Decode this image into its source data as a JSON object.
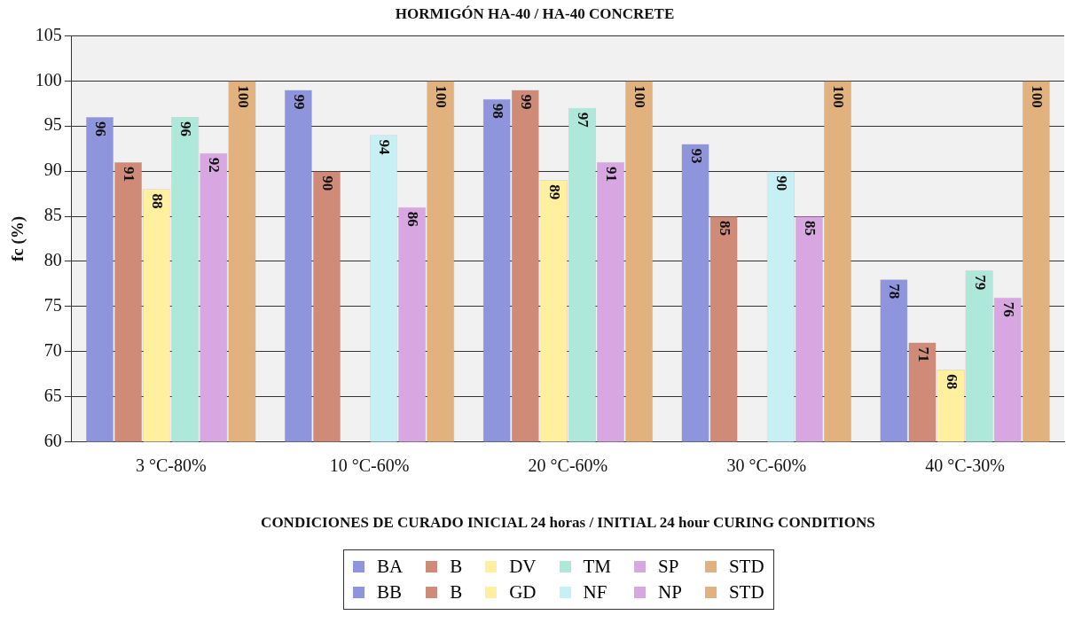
{
  "chart_data": {
    "type": "bar",
    "title": "HORMIGÓN HA-40 / HA-40 CONCRETE",
    "xlabel": "CONDICIONES DE CURADO INICIAL 24 horas / INITIAL 24 hour CURING CONDITIONS",
    "ylabel": "fc (%)",
    "categories": [
      "3 °C-80%",
      "10 °C-60%",
      "20 °C-60%",
      "30 °C-60%",
      "40 °C-30%"
    ],
    "series": [
      {
        "name": "BA",
        "color": "#8f95dd",
        "values": [
          96,
          null,
          98,
          null,
          78
        ]
      },
      {
        "name": "B",
        "color": "#d08a78",
        "values": [
          91,
          null,
          99,
          null,
          71
        ]
      },
      {
        "name": "DV",
        "color": "#fff0a0",
        "values": [
          88,
          null,
          89,
          null,
          68
        ]
      },
      {
        "name": "TM",
        "color": "#aee8da",
        "values": [
          96,
          null,
          97,
          null,
          79
        ]
      },
      {
        "name": "SP",
        "color": "#d8a6e0",
        "values": [
          92,
          null,
          91,
          null,
          76
        ]
      },
      {
        "name": "STD",
        "color": "#e2b27e",
        "values": [
          100,
          null,
          100,
          null,
          100
        ]
      },
      {
        "name": "BB",
        "color": "#8f95dd",
        "values": [
          null,
          99,
          null,
          93,
          null
        ]
      },
      {
        "name": "B",
        "color": "#d08a78",
        "values": [
          null,
          90,
          null,
          85,
          null
        ]
      },
      {
        "name": "GD",
        "color": "#fff0a0",
        "values": [
          null,
          null,
          null,
          null,
          null
        ]
      },
      {
        "name": "NF",
        "color": "#c6f0f4",
        "values": [
          null,
          94,
          null,
          90,
          null
        ]
      },
      {
        "name": "NP",
        "color": "#d8a6e0",
        "values": [
          null,
          86,
          null,
          85,
          null
        ]
      },
      {
        "name": "STD",
        "color": "#e2b27e",
        "values": [
          null,
          100,
          null,
          100,
          null
        ]
      }
    ],
    "ylim": [
      60,
      105
    ],
    "yticks": [
      60,
      65,
      70,
      75,
      80,
      85,
      90,
      95,
      100,
      105
    ],
    "grid": "y",
    "legend": "bottom",
    "data_labels": true
  }
}
